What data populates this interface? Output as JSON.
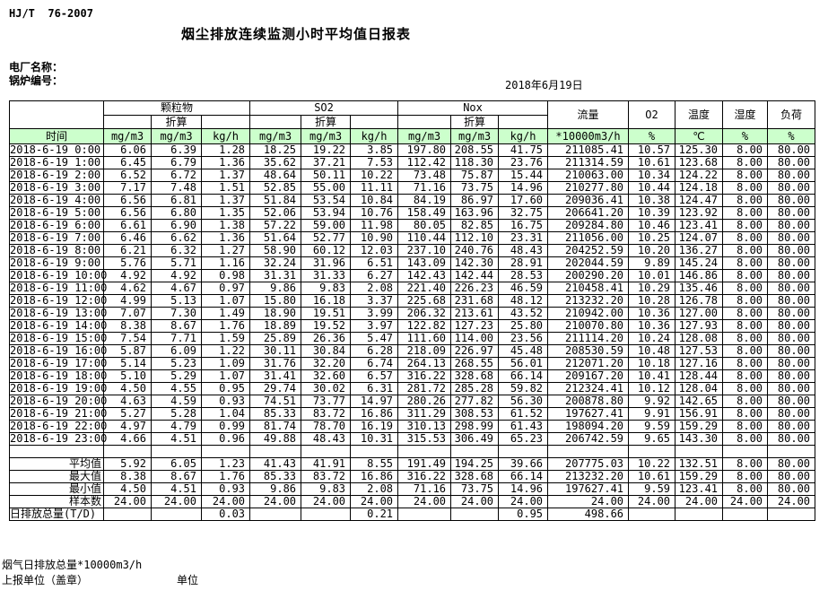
{
  "page": {
    "standard": "HJ/T  76-2007",
    "title": "烟尘排放连续监测小时平均值日报表",
    "plant_label": "电厂名称：",
    "boiler_label": "锅炉编号：",
    "date": "2018年6月19日"
  },
  "colors": {
    "header_row_bg": "#CCFFCC",
    "border": "#000000",
    "text": "#000000"
  },
  "table": {
    "header": {
      "time": "时间",
      "groups": [
        {
          "label": "颗粒物",
          "sub": "折算"
        },
        {
          "label": "SO2",
          "sub": "折算"
        },
        {
          "label": "Nox",
          "sub": "折算"
        }
      ],
      "singles": [
        {
          "label": "流量",
          "unit": "*10000m3/h"
        },
        {
          "label": "O2",
          "unit": "%"
        },
        {
          "label": "温度",
          "unit": "℃"
        },
        {
          "label": "湿度",
          "unit": "%"
        },
        {
          "label": "负荷",
          "unit": "%"
        }
      ],
      "units": {
        "mgm3": "mg/m3",
        "kgh": "kg/h",
        "flow": "*10000m3/h",
        "pct": "%",
        "celsius": "℃"
      }
    },
    "rows": [
      {
        "time": "2018-6-19 0:00",
        "values": [
          "6.06",
          "6.39",
          "1.28",
          "18.25",
          "19.22",
          "3.85",
          "197.80",
          "208.55",
          "41.75",
          "211085.41",
          "10.57",
          "125.30",
          "8.00",
          "80.00"
        ]
      },
      {
        "time": "2018-6-19 1:00",
        "values": [
          "6.45",
          "6.79",
          "1.36",
          "35.62",
          "37.21",
          "7.53",
          "112.42",
          "118.30",
          "23.76",
          "211314.59",
          "10.61",
          "123.68",
          "8.00",
          "80.00"
        ]
      },
      {
        "time": "2018-6-19 2:00",
        "values": [
          "6.52",
          "6.72",
          "1.37",
          "48.64",
          "50.11",
          "10.22",
          "73.48",
          "75.87",
          "15.44",
          "210063.00",
          "10.34",
          "124.22",
          "8.00",
          "80.00"
        ]
      },
      {
        "time": "2018-6-19 3:00",
        "values": [
          "7.17",
          "7.48",
          "1.51",
          "52.85",
          "55.00",
          "11.11",
          "71.16",
          "73.75",
          "14.96",
          "210277.80",
          "10.44",
          "124.18",
          "8.00",
          "80.00"
        ]
      },
      {
        "time": "2018-6-19 4:00",
        "values": [
          "6.56",
          "6.81",
          "1.37",
          "51.84",
          "53.54",
          "10.84",
          "84.19",
          "86.97",
          "17.60",
          "209036.41",
          "10.38",
          "124.47",
          "8.00",
          "80.00"
        ]
      },
      {
        "time": "2018-6-19 5:00",
        "values": [
          "6.56",
          "6.80",
          "1.35",
          "52.06",
          "53.94",
          "10.76",
          "158.49",
          "163.96",
          "32.75",
          "206641.20",
          "10.39",
          "123.92",
          "8.00",
          "80.00"
        ]
      },
      {
        "time": "2018-6-19 6:00",
        "values": [
          "6.61",
          "6.90",
          "1.38",
          "57.22",
          "59.00",
          "11.98",
          "80.05",
          "82.85",
          "16.75",
          "209284.80",
          "10.46",
          "123.41",
          "8.00",
          "80.00"
        ]
      },
      {
        "time": "2018-6-19 7:00",
        "values": [
          "6.46",
          "6.62",
          "1.36",
          "51.64",
          "52.77",
          "10.90",
          "110.44",
          "112.10",
          "23.31",
          "211056.00",
          "10.25",
          "124.07",
          "8.00",
          "80.00"
        ]
      },
      {
        "time": "2018-6-19 8:00",
        "values": [
          "6.21",
          "6.32",
          "1.27",
          "58.90",
          "60.12",
          "12.03",
          "237.10",
          "240.76",
          "48.43",
          "204252.59",
          "10.20",
          "136.27",
          "8.00",
          "80.00"
        ]
      },
      {
        "time": "2018-6-19 9:00",
        "values": [
          "5.76",
          "5.71",
          "1.16",
          "32.24",
          "31.96",
          "6.51",
          "143.09",
          "142.30",
          "28.91",
          "202044.59",
          "9.89",
          "145.24",
          "8.00",
          "80.00"
        ]
      },
      {
        "time": "2018-6-19 10:00",
        "values": [
          "4.92",
          "4.92",
          "0.98",
          "31.31",
          "31.33",
          "6.27",
          "142.43",
          "142.44",
          "28.53",
          "200290.20",
          "10.01",
          "146.86",
          "8.00",
          "80.00"
        ]
      },
      {
        "time": "2018-6-19 11:00",
        "values": [
          "4.62",
          "4.67",
          "0.97",
          "9.86",
          "9.83",
          "2.08",
          "221.40",
          "226.23",
          "46.59",
          "210458.41",
          "10.29",
          "135.46",
          "8.00",
          "80.00"
        ]
      },
      {
        "time": "2018-6-19 12:00",
        "values": [
          "4.99",
          "5.13",
          "1.07",
          "15.80",
          "16.18",
          "3.37",
          "225.68",
          "231.68",
          "48.12",
          "213232.20",
          "10.28",
          "126.78",
          "8.00",
          "80.00"
        ]
      },
      {
        "time": "2018-6-19 13:00",
        "values": [
          "7.07",
          "7.30",
          "1.49",
          "18.90",
          "19.51",
          "3.99",
          "206.32",
          "213.61",
          "43.52",
          "210942.00",
          "10.36",
          "127.00",
          "8.00",
          "80.00"
        ]
      },
      {
        "time": "2018-6-19 14:00",
        "values": [
          "8.38",
          "8.67",
          "1.76",
          "18.89",
          "19.52",
          "3.97",
          "122.82",
          "127.23",
          "25.80",
          "210070.80",
          "10.36",
          "127.93",
          "8.00",
          "80.00"
        ]
      },
      {
        "time": "2018-6-19 15:00",
        "values": [
          "7.54",
          "7.71",
          "1.59",
          "25.89",
          "26.36",
          "5.47",
          "111.60",
          "114.00",
          "23.56",
          "211114.20",
          "10.24",
          "128.08",
          "8.00",
          "80.00"
        ]
      },
      {
        "time": "2018-6-19 16:00",
        "values": [
          "5.87",
          "6.09",
          "1.22",
          "30.11",
          "30.84",
          "6.28",
          "218.09",
          "226.97",
          "45.48",
          "208530.59",
          "10.48",
          "127.53",
          "8.00",
          "80.00"
        ]
      },
      {
        "time": "2018-6-19 17:00",
        "values": [
          "5.14",
          "5.23",
          "1.09",
          "31.76",
          "32.20",
          "6.74",
          "264.13",
          "268.55",
          "56.01",
          "212071.20",
          "10.18",
          "127.16",
          "8.00",
          "80.00"
        ]
      },
      {
        "time": "2018-6-19 18:00",
        "values": [
          "5.10",
          "5.29",
          "1.07",
          "31.41",
          "32.60",
          "6.57",
          "316.22",
          "328.68",
          "66.14",
          "209167.20",
          "10.41",
          "128.44",
          "8.00",
          "80.00"
        ]
      },
      {
        "time": "2018-6-19 19:00",
        "values": [
          "4.50",
          "4.55",
          "0.95",
          "29.74",
          "30.02",
          "6.31",
          "281.72",
          "285.28",
          "59.82",
          "212324.41",
          "10.12",
          "128.04",
          "8.00",
          "80.00"
        ]
      },
      {
        "time": "2018-6-19 20:00",
        "values": [
          "4.63",
          "4.59",
          "0.93",
          "74.51",
          "73.77",
          "14.97",
          "280.26",
          "277.82",
          "56.30",
          "200878.80",
          "9.92",
          "142.65",
          "8.00",
          "80.00"
        ]
      },
      {
        "time": "2018-6-19 21:00",
        "values": [
          "5.27",
          "5.28",
          "1.04",
          "85.33",
          "83.72",
          "16.86",
          "311.29",
          "308.53",
          "61.52",
          "197627.41",
          "9.91",
          "156.91",
          "8.00",
          "80.00"
        ]
      },
      {
        "time": "2018-6-19 22:00",
        "values": [
          "4.97",
          "4.79",
          "0.99",
          "81.74",
          "78.70",
          "16.19",
          "310.13",
          "298.99",
          "61.43",
          "198094.20",
          "9.59",
          "159.29",
          "8.00",
          "80.00"
        ]
      },
      {
        "time": "2018-6-19 23:00",
        "values": [
          "4.66",
          "4.51",
          "0.96",
          "49.88",
          "48.43",
          "10.31",
          "315.53",
          "306.49",
          "65.23",
          "206742.59",
          "9.65",
          "143.30",
          "8.00",
          "80.00"
        ]
      }
    ],
    "summary": [
      {
        "label": "平均值",
        "values": [
          "5.92",
          "6.05",
          "1.23",
          "41.43",
          "41.91",
          "8.55",
          "191.49",
          "194.25",
          "39.66",
          "207775.03",
          "10.22",
          "132.51",
          "8.00",
          "80.00"
        ]
      },
      {
        "label": "最大值",
        "values": [
          "8.38",
          "8.67",
          "1.76",
          "85.33",
          "83.72",
          "16.86",
          "316.22",
          "328.68",
          "66.14",
          "213232.20",
          "10.61",
          "159.29",
          "8.00",
          "80.00"
        ]
      },
      {
        "label": "最小值",
        "values": [
          "4.50",
          "4.51",
          "0.93",
          "9.86",
          "9.83",
          "2.08",
          "71.16",
          "73.75",
          "14.96",
          "197627.41",
          "9.59",
          "123.41",
          "8.00",
          "80.00"
        ]
      },
      {
        "label": "样本数",
        "values": [
          "24.00",
          "24.00",
          "24.00",
          "24.00",
          "24.00",
          "24.00",
          "24.00",
          "24.00",
          "24.00",
          "24.00",
          "24.00",
          "24.00",
          "24.00",
          "24.00"
        ]
      }
    ],
    "daily_total": {
      "label": "日排放总量(T/D)",
      "values": [
        "",
        "",
        "0.03",
        "",
        "",
        "0.21",
        "",
        "",
        "0.95",
        "498.66",
        "",
        "",
        "",
        ""
      ]
    }
  },
  "footer": {
    "flow_note": "烟气日排放总量*10000m3/h",
    "report_unit_label": "上报单位（盖章）",
    "unit_label": "单位"
  }
}
